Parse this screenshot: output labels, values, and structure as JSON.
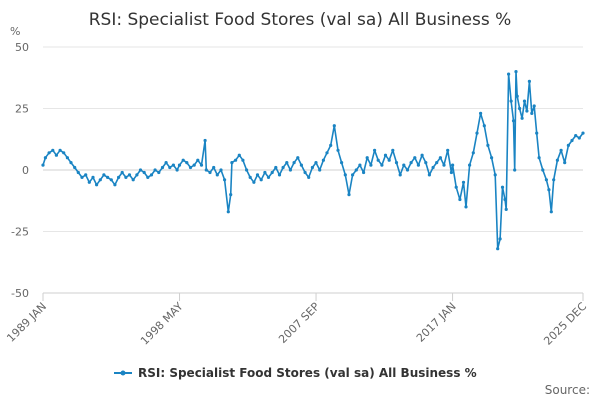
{
  "chart_data": {
    "type": "line",
    "title": "RSI: Specialist Food Stores (val sa) All Business %",
    "ylabel": "%",
    "ylim": [
      -50,
      50
    ],
    "yticks": [
      "50",
      "25",
      "0",
      "-25",
      "-50"
    ],
    "grid": true,
    "legend": "bottom",
    "series_color": "#1a84c3",
    "xticks": [
      {
        "label": "1989 JAN",
        "date": "1989-01"
      },
      {
        "label": "1998 MAY",
        "date": "1998-05"
      },
      {
        "label": "2007 SEP",
        "date": "2007-09"
      },
      {
        "label": "2017 JAN",
        "date": "2017-01"
      },
      {
        "label": "2025 DEC",
        "date": "2025-12"
      }
    ],
    "series": [
      {
        "name": "RSI: Specialist Food Stores (val sa) All Business %",
        "points": [
          [
            "1989-01",
            2
          ],
          [
            "1989-03",
            5
          ],
          [
            "1989-06",
            7
          ],
          [
            "1989-09",
            8
          ],
          [
            "1989-12",
            6
          ],
          [
            "1990-03",
            8
          ],
          [
            "1990-06",
            7
          ],
          [
            "1990-09",
            5
          ],
          [
            "1990-12",
            3
          ],
          [
            "1991-03",
            1
          ],
          [
            "1991-06",
            -1
          ],
          [
            "1991-09",
            -3
          ],
          [
            "1991-12",
            -2
          ],
          [
            "1992-03",
            -5
          ],
          [
            "1992-06",
            -3
          ],
          [
            "1992-09",
            -6
          ],
          [
            "1992-12",
            -4
          ],
          [
            "1993-03",
            -2
          ],
          [
            "1993-06",
            -3
          ],
          [
            "1993-09",
            -4
          ],
          [
            "1993-12",
            -6
          ],
          [
            "1994-03",
            -3
          ],
          [
            "1994-06",
            -1
          ],
          [
            "1994-09",
            -3
          ],
          [
            "1994-12",
            -2
          ],
          [
            "1995-03",
            -4
          ],
          [
            "1995-06",
            -2
          ],
          [
            "1995-09",
            0
          ],
          [
            "1995-12",
            -1
          ],
          [
            "1996-03",
            -3
          ],
          [
            "1996-06",
            -2
          ],
          [
            "1996-09",
            0
          ],
          [
            "1996-12",
            -1
          ],
          [
            "1997-03",
            1
          ],
          [
            "1997-06",
            3
          ],
          [
            "1997-09",
            1
          ],
          [
            "1997-12",
            2
          ],
          [
            "1998-03",
            0
          ],
          [
            "1998-05",
            2
          ],
          [
            "1998-08",
            4
          ],
          [
            "1998-11",
            3
          ],
          [
            "1999-02",
            1
          ],
          [
            "1999-05",
            2
          ],
          [
            "1999-08",
            4
          ],
          [
            "1999-11",
            2
          ],
          [
            "2000-02",
            12
          ],
          [
            "2000-03",
            0
          ],
          [
            "2000-06",
            -1
          ],
          [
            "2000-09",
            1
          ],
          [
            "2000-12",
            -2
          ],
          [
            "2001-03",
            0
          ],
          [
            "2001-06",
            -4
          ],
          [
            "2001-09",
            -17
          ],
          [
            "2001-11",
            -10
          ],
          [
            "2001-12",
            3
          ],
          [
            "2002-03",
            4
          ],
          [
            "2002-06",
            6
          ],
          [
            "2002-09",
            4
          ],
          [
            "2002-12",
            0
          ],
          [
            "2003-03",
            -3
          ],
          [
            "2003-06",
            -5
          ],
          [
            "2003-09",
            -2
          ],
          [
            "2003-12",
            -4
          ],
          [
            "2004-03",
            -1
          ],
          [
            "2004-06",
            -3
          ],
          [
            "2004-09",
            -1
          ],
          [
            "2004-12",
            1
          ],
          [
            "2005-03",
            -2
          ],
          [
            "2005-06",
            1
          ],
          [
            "2005-09",
            3
          ],
          [
            "2005-12",
            0
          ],
          [
            "2006-03",
            3
          ],
          [
            "2006-06",
            5
          ],
          [
            "2006-09",
            2
          ],
          [
            "2006-12",
            -1
          ],
          [
            "2007-03",
            -3
          ],
          [
            "2007-06",
            1
          ],
          [
            "2007-09",
            3
          ],
          [
            "2007-12",
            0
          ],
          [
            "2008-03",
            4
          ],
          [
            "2008-06",
            7
          ],
          [
            "2008-09",
            10
          ],
          [
            "2008-12",
            18
          ],
          [
            "2009-03",
            8
          ],
          [
            "2009-06",
            3
          ],
          [
            "2009-09",
            -2
          ],
          [
            "2009-12",
            -10
          ],
          [
            "2010-03",
            -2
          ],
          [
            "2010-06",
            0
          ],
          [
            "2010-09",
            2
          ],
          [
            "2010-12",
            -1
          ],
          [
            "2011-03",
            5
          ],
          [
            "2011-06",
            2
          ],
          [
            "2011-09",
            8
          ],
          [
            "2011-12",
            4
          ],
          [
            "2012-03",
            2
          ],
          [
            "2012-06",
            6
          ],
          [
            "2012-09",
            4
          ],
          [
            "2012-12",
            8
          ],
          [
            "2013-03",
            3
          ],
          [
            "2013-06",
            -2
          ],
          [
            "2013-09",
            2
          ],
          [
            "2013-12",
            0
          ],
          [
            "2014-03",
            3
          ],
          [
            "2014-06",
            5
          ],
          [
            "2014-09",
            2
          ],
          [
            "2014-12",
            6
          ],
          [
            "2015-03",
            3
          ],
          [
            "2015-06",
            -2
          ],
          [
            "2015-09",
            1
          ],
          [
            "2015-12",
            3
          ],
          [
            "2016-03",
            5
          ],
          [
            "2016-06",
            2
          ],
          [
            "2016-09",
            8
          ],
          [
            "2016-12",
            -1
          ],
          [
            "2017-01",
            2
          ],
          [
            "2017-04",
            -7
          ],
          [
            "2017-07",
            -12
          ],
          [
            "2017-10",
            -5
          ],
          [
            "2017-12",
            -15
          ],
          [
            "2018-03",
            2
          ],
          [
            "2018-06",
            7
          ],
          [
            "2018-09",
            15
          ],
          [
            "2018-12",
            23
          ],
          [
            "2019-03",
            18
          ],
          [
            "2019-06",
            10
          ],
          [
            "2019-09",
            5
          ],
          [
            "2019-12",
            -2
          ],
          [
            "2020-02",
            -32
          ],
          [
            "2020-04",
            -28
          ],
          [
            "2020-06",
            -7
          ],
          [
            "2020-08",
            -12
          ],
          [
            "2020-09",
            -16
          ],
          [
            "2020-11",
            39
          ],
          [
            "2021-01",
            28
          ],
          [
            "2021-03",
            20
          ],
          [
            "2021-04",
            0
          ],
          [
            "2021-05",
            40
          ],
          [
            "2021-06",
            30
          ],
          [
            "2021-08",
            25
          ],
          [
            "2021-10",
            21
          ],
          [
            "2021-12",
            28
          ],
          [
            "2022-02",
            24
          ],
          [
            "2022-04",
            36
          ],
          [
            "2022-06",
            23
          ],
          [
            "2022-08",
            26
          ],
          [
            "2022-10",
            15
          ],
          [
            "2022-12",
            5
          ],
          [
            "2023-03",
            0
          ],
          [
            "2023-06",
            -4
          ],
          [
            "2023-08",
            -8
          ],
          [
            "2023-10",
            -17
          ],
          [
            "2023-12",
            -4
          ],
          [
            "2024-03",
            4
          ],
          [
            "2024-06",
            8
          ],
          [
            "2024-09",
            3
          ],
          [
            "2024-12",
            10
          ],
          [
            "2025-03",
            12
          ],
          [
            "2025-06",
            14
          ],
          [
            "2025-09",
            13
          ],
          [
            "2025-12",
            15
          ]
        ]
      }
    ]
  },
  "credits": "Source:"
}
